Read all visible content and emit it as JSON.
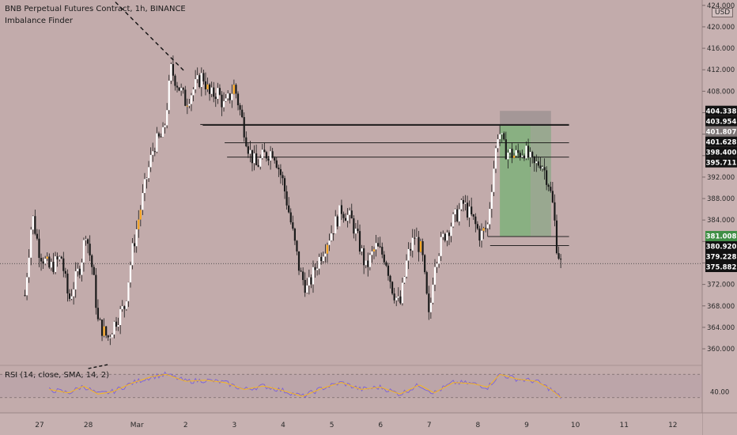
{
  "header": {
    "title": "BNB Perpetual Futures Contract, 1h, BINANCE",
    "indicator": "Imbalance Finder"
  },
  "rsi": {
    "label": "RSI (14, close, SMA, 14, 2)",
    "axis_label": "40.00"
  },
  "currency": "USD",
  "colors": {
    "background": "#c2abab",
    "candle": "#ffffff",
    "highlight": "#f5a623",
    "rsi_line": "#7b61d9",
    "rsi_ma": "#f0b32a",
    "profit_zone": "#7fb07a",
    "loss_zone": "#9a9090"
  },
  "chart_data": {
    "type": "candlestick",
    "x_ticks": [
      "27",
      "28",
      "Mar",
      "2",
      "3",
      "4",
      "5",
      "6",
      "7",
      "8",
      "9",
      "10",
      "11",
      "12"
    ],
    "y_ticks": [
      424.0,
      420.0,
      416.0,
      412.0,
      408.0,
      404.0,
      400.0,
      396.0,
      392.0,
      388.0,
      384.0,
      380.0,
      376.0,
      372.0,
      368.0,
      364.0,
      360.0
    ],
    "y_range": [
      357.5,
      425
    ],
    "price_levels": [
      {
        "label": "404.338",
        "value": 404.338,
        "style": "dark"
      },
      {
        "label": "403.954",
        "value": 403.954,
        "style": "dark"
      },
      {
        "label": "401.807",
        "value": 401.807,
        "style": "grey"
      },
      {
        "label": "401.628",
        "value": 401.628,
        "style": "dark"
      },
      {
        "label": "398.400",
        "value": 398.4,
        "style": "dark"
      },
      {
        "label": "395.711",
        "value": 395.711,
        "style": "dark"
      },
      {
        "label": "381.008",
        "value": 381.008,
        "style": "green"
      },
      {
        "label": "380.920",
        "value": 380.92,
        "style": "dark"
      },
      {
        "label": "379.228",
        "value": 379.228,
        "style": "dark"
      },
      {
        "label": "375.882",
        "value": 375.882,
        "style": "dark"
      }
    ],
    "horizontal_lines": [
      {
        "value": 401.807,
        "x_from": 3.3,
        "x_to": 10.87
      },
      {
        "value": 401.628,
        "x_from": 3.35,
        "x_to": 10.87
      },
      {
        "value": 398.4,
        "x_from": 3.8,
        "x_to": 10.87
      },
      {
        "value": 395.711,
        "x_from": 3.85,
        "x_to": 10.87
      },
      {
        "value": 380.92,
        "x_from": 9.2,
        "x_to": 10.87
      },
      {
        "value": 379.228,
        "x_from": 9.25,
        "x_to": 10.87
      }
    ],
    "position_tool": {
      "entry": 401.628,
      "stop": 404.338,
      "target": 381.008,
      "x_from": 9.45,
      "x_to": 10.5
    },
    "trendline": {
      "x1": 1.35,
      "y1": 426.5,
      "x2": 3.0,
      "y2": 411.5
    },
    "ohlc_keypoints": [
      {
        "x": -0.3,
        "price": 370
      },
      {
        "x": -0.15,
        "price": 385
      },
      {
        "x": 0.0,
        "price": 378
      },
      {
        "x": 0.2,
        "price": 375
      },
      {
        "x": 0.45,
        "price": 377
      },
      {
        "x": 0.6,
        "price": 369
      },
      {
        "x": 0.85,
        "price": 376
      },
      {
        "x": 0.95,
        "price": 382
      },
      {
        "x": 1.1,
        "price": 374
      },
      {
        "x": 1.2,
        "price": 365
      },
      {
        "x": 1.4,
        "price": 362
      },
      {
        "x": 1.55,
        "price": 365
      },
      {
        "x": 1.75,
        "price": 368
      },
      {
        "x": 1.9,
        "price": 378
      },
      {
        "x": 2.05,
        "price": 385
      },
      {
        "x": 2.2,
        "price": 392
      },
      {
        "x": 2.35,
        "price": 398
      },
      {
        "x": 2.55,
        "price": 400
      },
      {
        "x": 2.7,
        "price": 412
      },
      {
        "x": 2.85,
        "price": 409
      },
      {
        "x": 3.0,
        "price": 406
      },
      {
        "x": 3.2,
        "price": 409
      },
      {
        "x": 3.35,
        "price": 411
      },
      {
        "x": 3.5,
        "price": 407
      },
      {
        "x": 3.65,
        "price": 408
      },
      {
        "x": 3.8,
        "price": 405
      },
      {
        "x": 4.0,
        "price": 409
      },
      {
        "x": 4.15,
        "price": 403
      },
      {
        "x": 4.3,
        "price": 397
      },
      {
        "x": 4.45,
        "price": 394
      },
      {
        "x": 4.6,
        "price": 396
      },
      {
        "x": 4.8,
        "price": 397
      },
      {
        "x": 5.0,
        "price": 391
      },
      {
        "x": 5.15,
        "price": 384
      },
      {
        "x": 5.35,
        "price": 374
      },
      {
        "x": 5.5,
        "price": 371
      },
      {
        "x": 5.7,
        "price": 376
      },
      {
        "x": 5.9,
        "price": 380
      },
      {
        "x": 6.05,
        "price": 383
      },
      {
        "x": 6.2,
        "price": 386
      },
      {
        "x": 6.4,
        "price": 384
      },
      {
        "x": 6.55,
        "price": 380
      },
      {
        "x": 6.7,
        "price": 375
      },
      {
        "x": 6.9,
        "price": 379
      },
      {
        "x": 7.1,
        "price": 377
      },
      {
        "x": 7.25,
        "price": 371
      },
      {
        "x": 7.4,
        "price": 368
      },
      {
        "x": 7.55,
        "price": 377
      },
      {
        "x": 7.7,
        "price": 381
      },
      {
        "x": 7.85,
        "price": 378
      },
      {
        "x": 8.0,
        "price": 365
      },
      {
        "x": 8.1,
        "price": 376
      },
      {
        "x": 8.3,
        "price": 381
      },
      {
        "x": 8.5,
        "price": 384
      },
      {
        "x": 8.7,
        "price": 387
      },
      {
        "x": 8.9,
        "price": 384
      },
      {
        "x": 9.05,
        "price": 381
      },
      {
        "x": 9.2,
        "price": 383
      },
      {
        "x": 9.3,
        "price": 392
      },
      {
        "x": 9.42,
        "price": 401
      },
      {
        "x": 9.55,
        "price": 397
      },
      {
        "x": 9.75,
        "price": 396
      },
      {
        "x": 9.95,
        "price": 397
      },
      {
        "x": 10.15,
        "price": 394
      },
      {
        "x": 10.3,
        "price": 395
      },
      {
        "x": 10.45,
        "price": 391
      },
      {
        "x": 10.55,
        "price": 386
      },
      {
        "x": 10.62,
        "price": 379
      },
      {
        "x": 10.7,
        "price": 376
      }
    ],
    "rsi_values": [
      {
        "x": 0.2,
        "rsi": 44
      },
      {
        "x": 0.6,
        "rsi": 38
      },
      {
        "x": 0.9,
        "rsi": 50
      },
      {
        "x": 1.2,
        "rsi": 36
      },
      {
        "x": 1.5,
        "rsi": 40
      },
      {
        "x": 1.9,
        "rsi": 55
      },
      {
        "x": 2.3,
        "rsi": 66
      },
      {
        "x": 2.6,
        "rsi": 70
      },
      {
        "x": 3.0,
        "rsi": 58
      },
      {
        "x": 3.4,
        "rsi": 60
      },
      {
        "x": 3.8,
        "rsi": 56
      },
      {
        "x": 4.2,
        "rsi": 44
      },
      {
        "x": 4.6,
        "rsi": 50
      },
      {
        "x": 5.0,
        "rsi": 42
      },
      {
        "x": 5.4,
        "rsi": 32
      },
      {
        "x": 5.8,
        "rsi": 46
      },
      {
        "x": 6.2,
        "rsi": 56
      },
      {
        "x": 6.6,
        "rsi": 44
      },
      {
        "x": 7.0,
        "rsi": 48
      },
      {
        "x": 7.4,
        "rsi": 36
      },
      {
        "x": 7.8,
        "rsi": 52
      },
      {
        "x": 8.1,
        "rsi": 38
      },
      {
        "x": 8.5,
        "rsi": 56
      },
      {
        "x": 8.9,
        "rsi": 54
      },
      {
        "x": 9.2,
        "rsi": 48
      },
      {
        "x": 9.45,
        "rsi": 70
      },
      {
        "x": 9.8,
        "rsi": 62
      },
      {
        "x": 10.2,
        "rsi": 58
      },
      {
        "x": 10.5,
        "rsi": 44
      },
      {
        "x": 10.7,
        "rsi": 30
      }
    ]
  }
}
